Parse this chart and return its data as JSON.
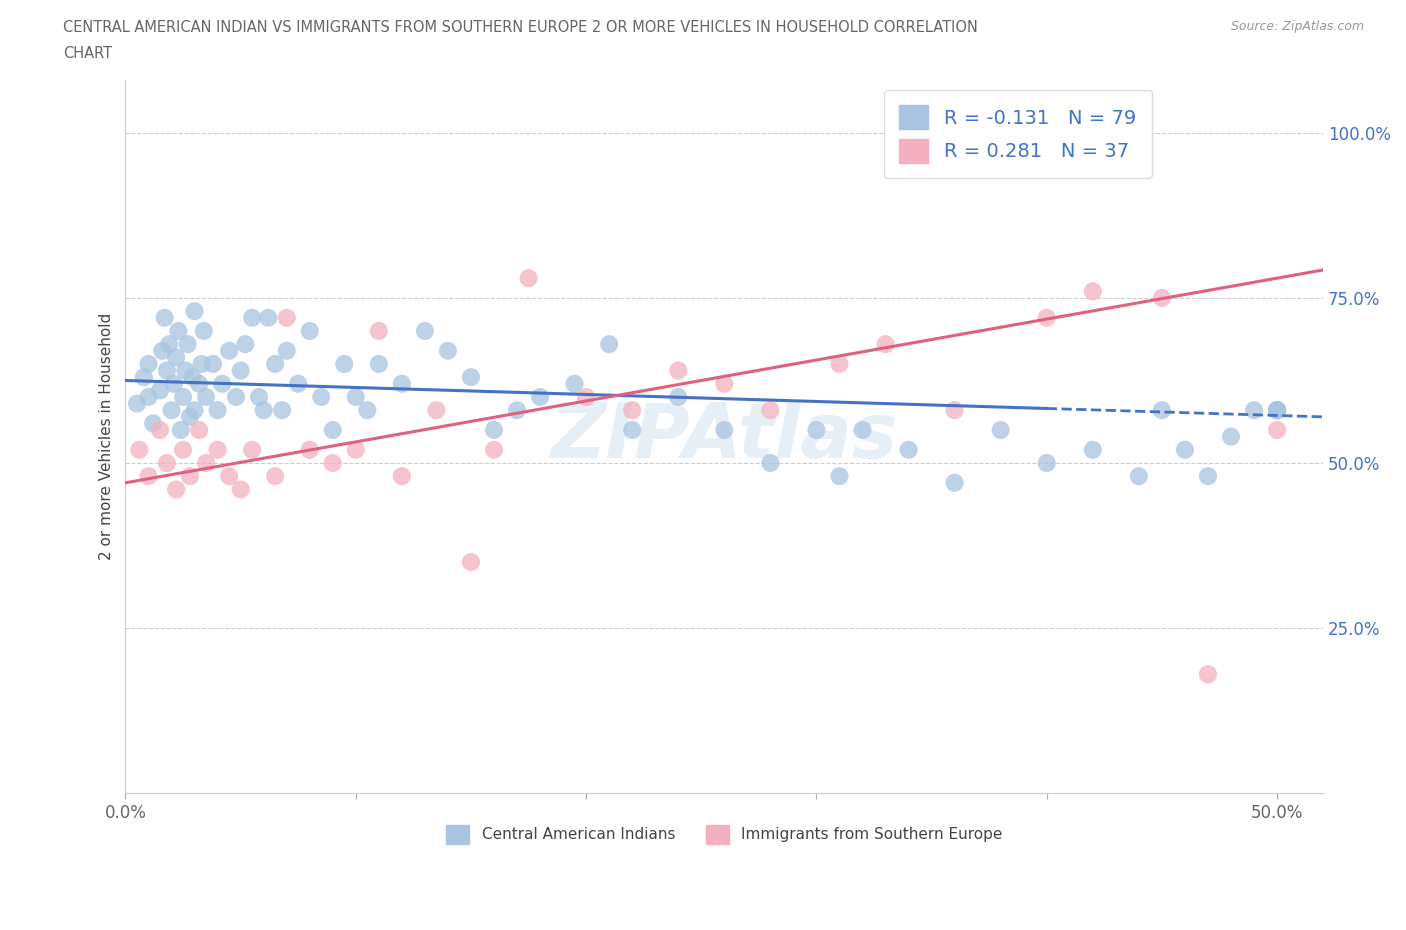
{
  "title_line1": "CENTRAL AMERICAN INDIAN VS IMMIGRANTS FROM SOUTHERN EUROPE 2 OR MORE VEHICLES IN HOUSEHOLD CORRELATION",
  "title_line2": "CHART",
  "source": "Source: ZipAtlas.com",
  "ylabel": "2 or more Vehicles in Household",
  "xlim": [
    0.0,
    0.52
  ],
  "ylim": [
    0.0,
    1.08
  ],
  "ytick_positions": [
    0.25,
    0.5,
    0.75,
    1.0
  ],
  "ytick_labels": [
    "25.0%",
    "50.0%",
    "75.0%",
    "100.0%"
  ],
  "xtick_positions": [
    0.0,
    0.1,
    0.2,
    0.3,
    0.4,
    0.5
  ],
  "xticklabels": [
    "0.0%",
    "",
    "",
    "",
    "",
    "50.0%"
  ],
  "R_blue": -0.131,
  "N_blue": 79,
  "R_pink": 0.281,
  "N_pink": 37,
  "legend_label_blue": "Central American Indians",
  "legend_label_pink": "Immigrants from Southern Europe",
  "blue_color": "#a8c4e0",
  "blue_line_color": "#4472c4",
  "pink_color": "#f4b0c0",
  "pink_line_color": "#e06080",
  "grid_color": "#cccccc",
  "blue_scatter_x": [
    0.005,
    0.008,
    0.01,
    0.01,
    0.012,
    0.015,
    0.016,
    0.017,
    0.018,
    0.019,
    0.02,
    0.021,
    0.022,
    0.023,
    0.024,
    0.025,
    0.026,
    0.027,
    0.028,
    0.029,
    0.03,
    0.03,
    0.032,
    0.033,
    0.034,
    0.035,
    0.038,
    0.04,
    0.042,
    0.045,
    0.048,
    0.05,
    0.052,
    0.055,
    0.058,
    0.06,
    0.062,
    0.065,
    0.068,
    0.07,
    0.075,
    0.08,
    0.085,
    0.09,
    0.095,
    0.1,
    0.105,
    0.11,
    0.12,
    0.13,
    0.14,
    0.15,
    0.16,
    0.17,
    0.18,
    0.195,
    0.21,
    0.22,
    0.24,
    0.26,
    0.28,
    0.3,
    0.31,
    0.32,
    0.34,
    0.36,
    0.38,
    0.4,
    0.42,
    0.44,
    0.45,
    0.46,
    0.47,
    0.48,
    0.49,
    0.5,
    0.5,
    0.5,
    0.5
  ],
  "blue_scatter_y": [
    0.59,
    0.63,
    0.6,
    0.65,
    0.56,
    0.61,
    0.67,
    0.72,
    0.64,
    0.68,
    0.58,
    0.62,
    0.66,
    0.7,
    0.55,
    0.6,
    0.64,
    0.68,
    0.57,
    0.63,
    0.58,
    0.73,
    0.62,
    0.65,
    0.7,
    0.6,
    0.65,
    0.58,
    0.62,
    0.67,
    0.6,
    0.64,
    0.68,
    0.72,
    0.6,
    0.58,
    0.72,
    0.65,
    0.58,
    0.67,
    0.62,
    0.7,
    0.6,
    0.55,
    0.65,
    0.6,
    0.58,
    0.65,
    0.62,
    0.7,
    0.67,
    0.63,
    0.55,
    0.58,
    0.6,
    0.62,
    0.68,
    0.55,
    0.6,
    0.55,
    0.5,
    0.55,
    0.48,
    0.55,
    0.52,
    0.47,
    0.55,
    0.5,
    0.52,
    0.48,
    0.58,
    0.52,
    0.48,
    0.54,
    0.58,
    0.58,
    0.58,
    0.58,
    0.58
  ],
  "pink_scatter_x": [
    0.006,
    0.01,
    0.015,
    0.018,
    0.022,
    0.025,
    0.028,
    0.032,
    0.035,
    0.04,
    0.045,
    0.05,
    0.055,
    0.065,
    0.07,
    0.08,
    0.09,
    0.1,
    0.11,
    0.12,
    0.135,
    0.15,
    0.16,
    0.175,
    0.2,
    0.22,
    0.24,
    0.26,
    0.28,
    0.31,
    0.33,
    0.36,
    0.4,
    0.42,
    0.45,
    0.47,
    0.5
  ],
  "pink_scatter_y": [
    0.52,
    0.48,
    0.55,
    0.5,
    0.46,
    0.52,
    0.48,
    0.55,
    0.5,
    0.52,
    0.48,
    0.46,
    0.52,
    0.48,
    0.72,
    0.52,
    0.5,
    0.52,
    0.7,
    0.48,
    0.58,
    0.35,
    0.52,
    0.78,
    0.6,
    0.58,
    0.64,
    0.62,
    0.58,
    0.65,
    0.68,
    0.58,
    0.72,
    0.76,
    0.75,
    0.18,
    0.55
  ]
}
